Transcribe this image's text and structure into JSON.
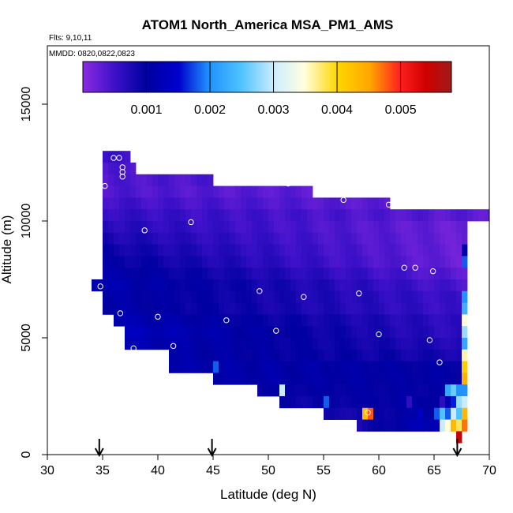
{
  "chart_data": {
    "type": "heatmap",
    "title": "ATOM1 North_America MSA_PM1_AMS",
    "flights_label": "Flts: 9,10,11",
    "dates_label": "MMDD: 0820,0822,0823",
    "xlabel": "Latitude (deg N)",
    "ylabel": "Altitude (m)",
    "xlim": [
      30,
      70
    ],
    "ylim": [
      0,
      17500
    ],
    "xticks": [
      "30",
      "35",
      "40",
      "45",
      "50",
      "55",
      "60",
      "65",
      "70"
    ],
    "yticks": [
      "0",
      "5000",
      "10000",
      "15000"
    ],
    "colorbar": {
      "range": [
        0,
        0.0058
      ],
      "tick_values": [
        0.001,
        0.002,
        0.003,
        0.004,
        0.005
      ],
      "tick_labels": [
        "0.001",
        "0.002",
        "0.003",
        "0.004",
        "0.005"
      ],
      "color_stops": [
        [
          0.0,
          "#8a2be2"
        ],
        [
          0.09,
          "#3a10c8"
        ],
        [
          0.17,
          "#0000a0"
        ],
        [
          0.26,
          "#0000cd"
        ],
        [
          0.34,
          "#1e90ff"
        ],
        [
          0.43,
          "#4fc3ff"
        ],
        [
          0.52,
          "#cdeeff"
        ],
        [
          0.6,
          "#ffffe0"
        ],
        [
          0.69,
          "#ffd700"
        ],
        [
          0.78,
          "#ffa500"
        ],
        [
          0.86,
          "#ff2020"
        ],
        [
          0.93,
          "#d00000"
        ],
        [
          1.0,
          "#9e1a1a"
        ]
      ]
    },
    "cell_size": {
      "lat": 0.5,
      "alt_m": 500
    },
    "columns": [
      {
        "x": [
          35,
          37.5
        ],
        "y": [
          12500,
          13000
        ],
        "v": [
          0.0005,
          0.0005
        ]
      },
      {
        "x": [
          35,
          38
        ],
        "y": [
          12000,
          12500
        ],
        "v": [
          0.0004,
          0.0004
        ]
      },
      {
        "x": [
          35,
          45
        ],
        "y": [
          11500,
          12000
        ],
        "v": [
          0.0004,
          0.0004
        ]
      },
      {
        "x": [
          35,
          54
        ],
        "y": [
          11000,
          11500
        ],
        "v": [
          0.0004,
          0.0003
        ]
      },
      {
        "x": [
          35,
          61
        ],
        "y": [
          10500,
          11000
        ],
        "v": [
          0.0005,
          0.0003
        ]
      },
      {
        "x": [
          35,
          70
        ],
        "y": [
          10000,
          10500
        ],
        "v": [
          0.0006,
          0.0003
        ]
      },
      {
        "x": [
          35,
          68
        ],
        "y": [
          9500,
          10000
        ],
        "v": [
          0.0007,
          0.0002
        ]
      },
      {
        "x": [
          35,
          68
        ],
        "y": [
          9000,
          9500
        ],
        "v": [
          0.0008,
          0.0002
        ]
      },
      {
        "x": [
          35,
          68
        ],
        "y": [
          8500,
          9000
        ],
        "v": [
          0.0009,
          0.0002
        ]
      },
      {
        "x": [
          35,
          68
        ],
        "y": [
          8000,
          8500
        ],
        "v": [
          0.001,
          0.0002
        ]
      },
      {
        "x": [
          35,
          68
        ],
        "y": [
          7500,
          8000
        ],
        "v": [
          0.0011,
          0.0003
        ]
      },
      {
        "x": [
          34,
          68
        ],
        "y": [
          7000,
          7500
        ],
        "v": [
          0.0012,
          0.0004
        ]
      },
      {
        "x": [
          35,
          68
        ],
        "y": [
          6500,
          7000
        ],
        "v": [
          0.0011,
          0.0005
        ]
      },
      {
        "x": [
          35,
          68
        ],
        "y": [
          6000,
          6500
        ],
        "v": [
          0.0011,
          0.0005
        ]
      },
      {
        "x": [
          36,
          68
        ],
        "y": [
          5500,
          6000
        ],
        "v": [
          0.0012,
          0.0006
        ]
      },
      {
        "x": [
          37,
          68
        ],
        "y": [
          5000,
          5500
        ],
        "v": [
          0.0013,
          0.0006
        ]
      },
      {
        "x": [
          37,
          68
        ],
        "y": [
          4500,
          5000
        ],
        "v": [
          0.0012,
          0.0007
        ]
      },
      {
        "x": [
          41,
          68
        ],
        "y": [
          4000,
          4500
        ],
        "v": [
          0.0011,
          0.0008
        ]
      },
      {
        "x": [
          41,
          68
        ],
        "y": [
          3500,
          4000
        ],
        "v": [
          0.0011,
          0.001
        ]
      },
      {
        "x": [
          45,
          68
        ],
        "y": [
          3000,
          3500
        ],
        "v": [
          0.0011,
          0.001
        ]
      },
      {
        "x": [
          49,
          68
        ],
        "y": [
          2500,
          3000
        ],
        "v": [
          0.001,
          0.001
        ]
      },
      {
        "x": [
          51,
          68
        ],
        "y": [
          2000,
          2500
        ],
        "v": [
          0.0009,
          0.0011
        ]
      },
      {
        "x": [
          55,
          68
        ],
        "y": [
          1500,
          2000
        ],
        "v": [
          0.0008,
          0.0012
        ]
      },
      {
        "x": [
          58,
          68
        ],
        "y": [
          1000,
          1500
        ],
        "v": [
          0.0008,
          0.0015
        ]
      }
    ],
    "special_cells": [
      {
        "lat": 67.5,
        "alt": 8500,
        "v": 0.0011
      },
      {
        "lat": 67.5,
        "alt": 8000,
        "v": 0.0018
      },
      {
        "lat": 67.5,
        "alt": 6500,
        "v": 0.002
      },
      {
        "lat": 67.5,
        "alt": 6000,
        "v": 0.0023
      },
      {
        "lat": 67.5,
        "alt": 5500,
        "v": 0.0035
      },
      {
        "lat": 67.5,
        "alt": 5000,
        "v": 0.0028
      },
      {
        "lat": 67.5,
        "alt": 4500,
        "v": 0.0022
      },
      {
        "lat": 67.5,
        "alt": 4000,
        "v": 0.0036
      },
      {
        "lat": 67.5,
        "alt": 3500,
        "v": 0.0041
      },
      {
        "lat": 67.5,
        "alt": 3000,
        "v": 0.0044
      },
      {
        "lat": 67.5,
        "alt": 2500,
        "v": 0.002
      },
      {
        "lat": 67.5,
        "alt": 2000,
        "v": 0.003
      },
      {
        "lat": 67.5,
        "alt": 1500,
        "v": 0.0043
      },
      {
        "lat": 67.5,
        "alt": 1000,
        "v": 0.0047
      },
      {
        "lat": 67.0,
        "alt": 2500,
        "v": 0.002
      },
      {
        "lat": 67.0,
        "alt": 2000,
        "v": 0.0028
      },
      {
        "lat": 67.0,
        "alt": 1500,
        "v": 0.0025
      },
      {
        "lat": 67.0,
        "alt": 1000,
        "v": 0.0038
      },
      {
        "lat": 67.0,
        "alt": 500,
        "v": 0.0055
      },
      {
        "lat": 66.5,
        "alt": 2500,
        "v": 0.0026
      },
      {
        "lat": 66.5,
        "alt": 2000,
        "v": 0.0016
      },
      {
        "lat": 66.5,
        "alt": 1500,
        "v": 0.003
      },
      {
        "lat": 66.5,
        "alt": 1000,
        "v": 0.0043
      },
      {
        "lat": 66.0,
        "alt": 2500,
        "v": 0.0022
      },
      {
        "lat": 66.0,
        "alt": 2000,
        "v": 0.0012
      },
      {
        "lat": 66.0,
        "alt": 1500,
        "v": 0.0018
      },
      {
        "lat": 66.0,
        "alt": 1000,
        "v": 0.0035
      },
      {
        "lat": 65.5,
        "alt": 2000,
        "v": 0.0006
      },
      {
        "lat": 65.5,
        "alt": 1500,
        "v": 0.0025
      },
      {
        "lat": 65.5,
        "alt": 1000,
        "v": 0.003
      },
      {
        "lat": 65.0,
        "alt": 1500,
        "v": 0.0018
      },
      {
        "lat": 64.5,
        "alt": 1500,
        "v": 0.001
      },
      {
        "lat": 63.5,
        "alt": 1500,
        "v": 0.0014
      },
      {
        "lat": 62.5,
        "alt": 2000,
        "v": 0.0006
      },
      {
        "lat": 62.5,
        "alt": 1500,
        "v": 0.0011
      },
      {
        "lat": 58.5,
        "alt": 1500,
        "v": 0.0043
      },
      {
        "lat": 59.0,
        "alt": 1500,
        "v": 0.0048
      },
      {
        "lat": 55.0,
        "alt": 2000,
        "v": 0.0018
      },
      {
        "lat": 51.0,
        "alt": 2500,
        "v": 0.003
      },
      {
        "lat": 45.0,
        "alt": 3500,
        "v": 0.0018
      }
    ],
    "points": [
      [
        36.0,
        12700
      ],
      [
        36.5,
        12700
      ],
      [
        36.8,
        12300
      ],
      [
        36.8,
        12100
      ],
      [
        36.8,
        11900
      ],
      [
        35.2,
        11500
      ],
      [
        47.2,
        11800
      ],
      [
        51.8,
        11600
      ],
      [
        56.8,
        10900
      ],
      [
        60.9,
        10700
      ],
      [
        69.9,
        10900
      ],
      [
        43.0,
        9950
      ],
      [
        38.8,
        9600
      ],
      [
        62.3,
        8000
      ],
      [
        63.3,
        8000
      ],
      [
        64.9,
        7850
      ],
      [
        34.8,
        7200
      ],
      [
        49.2,
        7000
      ],
      [
        53.2,
        6750
      ],
      [
        58.2,
        6900
      ],
      [
        36.6,
        6050
      ],
      [
        40.0,
        5900
      ],
      [
        46.2,
        5750
      ],
      [
        60.0,
        5150
      ],
      [
        50.7,
        5300
      ],
      [
        41.4,
        4650
      ],
      [
        37.8,
        4550
      ],
      [
        64.6,
        4900
      ],
      [
        65.5,
        3950
      ],
      [
        59.0,
        1800
      ],
      [
        65.3,
        650
      ]
    ],
    "arrows_lat": [
      34.7,
      44.9,
      67.1
    ]
  }
}
